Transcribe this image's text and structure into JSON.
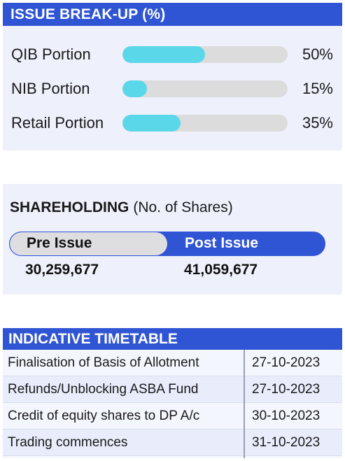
{
  "issue_breakup": {
    "title": "ISSUE BREAK-UP (%)",
    "rows": [
      {
        "label": "QIB Portion",
        "percent_text": "50%",
        "value": 50
      },
      {
        "label": "NIB Portion",
        "percent_text": "15%",
        "value": 15
      },
      {
        "label": "Retail Portion",
        "percent_text": "35%",
        "value": 35
      }
    ],
    "colors": {
      "header": "#2f55d4",
      "fill": "#5bd7ea",
      "track": "#dcdcdc"
    }
  },
  "shareholding": {
    "title": "SHAREHOLDING",
    "subtitle": "(No. of Shares)",
    "pre_label": "Pre Issue",
    "post_label": "Post Issue",
    "pre_value": "30,259,677",
    "post_value": "41,059,677"
  },
  "timetable": {
    "title": "INDICATIVE TIMETABLE",
    "rows": [
      {
        "event": "Finalisation of Basis of Allotment",
        "date": "27-10-2023"
      },
      {
        "event": "Refunds/Unblocking ASBA Fund",
        "date": "27-10-2023"
      },
      {
        "event": "Credit of equity shares to DP A/c",
        "date": "30-10-2023"
      },
      {
        "event": "Trading commences",
        "date": "31-10-2023"
      }
    ]
  }
}
